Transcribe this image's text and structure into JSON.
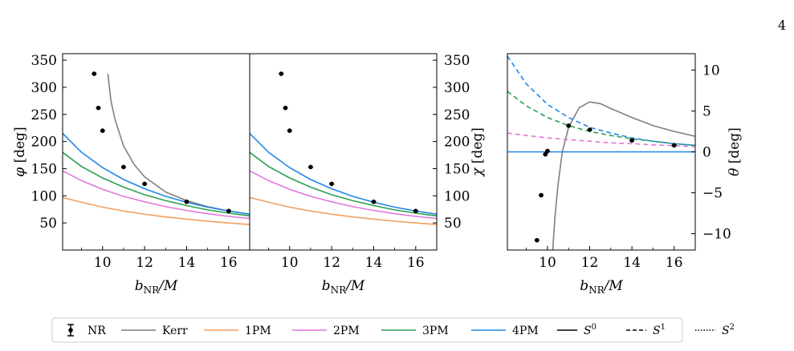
{
  "page_number": "4",
  "legend": {
    "items": [
      {
        "label": "NR",
        "kind": "errorbar",
        "color": "#000000",
        "dash": ""
      },
      {
        "label": "Kerr",
        "kind": "line",
        "color": "#7f7f7f",
        "dash": ""
      },
      {
        "label": "1PM",
        "kind": "line",
        "color": "#f0a060",
        "dash": ""
      },
      {
        "label": "2PM",
        "kind": "line",
        "color": "#e377e0",
        "dash": ""
      },
      {
        "label": "3PM",
        "kind": "line",
        "color": "#2ca050",
        "dash": ""
      },
      {
        "label": "4PM",
        "kind": "line",
        "color": "#1f87e6",
        "dash": ""
      },
      {
        "label": "S",
        "sup": "0",
        "kind": "line",
        "color": "#000000",
        "dash": ""
      },
      {
        "label": "S",
        "sup": "1",
        "kind": "line",
        "color": "#000000",
        "dash": "5,3"
      },
      {
        "label": "S",
        "sup": "2",
        "kind": "line",
        "color": "#000000",
        "dash": "1.5,2"
      }
    ]
  },
  "chart_data": [
    {
      "type": "line",
      "panel": "phi",
      "xlabel": "b_NR/M",
      "ylabel": "φ [deg]",
      "ylabel_side": "left",
      "xlim": [
        8.1,
        17
      ],
      "ylim": [
        0,
        362
      ],
      "xticks": [
        10,
        12,
        14,
        16
      ],
      "yticks": [
        50,
        100,
        150,
        200,
        250,
        300,
        350
      ],
      "scatter": [
        {
          "x": 9.6,
          "y": 325
        },
        {
          "x": 9.8,
          "y": 262
        },
        {
          "x": 10.0,
          "y": 220
        },
        {
          "x": 11.0,
          "y": 153
        },
        {
          "x": 12.0,
          "y": 122
        },
        {
          "x": 14.0,
          "y": 89
        },
        {
          "x": 16.0,
          "y": 72
        }
      ],
      "series": [
        {
          "name": "Kerr",
          "color": "#7f7f7f",
          "dash": "",
          "x": [
            10.25,
            10.4,
            10.6,
            11,
            11.5,
            12,
            13,
            14,
            15,
            16,
            17
          ],
          "y": [
            325,
            275,
            240,
            192,
            158,
            135,
            107,
            91,
            80,
            72,
            66
          ]
        },
        {
          "name": "1PM",
          "color": "#f0a060",
          "dash": "",
          "x": [
            8.1,
            9,
            10,
            11,
            12,
            13,
            14,
            15,
            16,
            17
          ],
          "y": [
            97,
            88,
            79,
            72,
            66,
            61,
            57,
            53,
            50,
            47
          ]
        },
        {
          "name": "2PM",
          "color": "#e377e0",
          "dash": "",
          "x": [
            8.1,
            9,
            10,
            11,
            12,
            13,
            14,
            15,
            16,
            17
          ],
          "y": [
            146,
            128,
            112,
            99,
            89,
            80,
            73,
            67,
            62,
            58
          ]
        },
        {
          "name": "3PM",
          "color": "#2ca050",
          "dash": "",
          "x": [
            8.1,
            9,
            10,
            11,
            12,
            13,
            14,
            15,
            16,
            17
          ],
          "y": [
            180,
            154,
            133,
            116,
            102,
            91,
            82,
            74,
            68,
            63
          ]
        },
        {
          "name": "4PM",
          "color": "#1f87e6",
          "dash": "",
          "x": [
            8.1,
            9,
            10,
            11,
            12,
            13,
            14,
            15,
            16,
            17
          ],
          "y": [
            215,
            180,
            152,
            130,
            113,
            99,
            88,
            79,
            72,
            66
          ]
        }
      ]
    },
    {
      "type": "line",
      "panel": "chi",
      "xlabel": "b_NR/M",
      "ylabel": "χ [deg]",
      "ylabel_side": "right",
      "xlim": [
        8.1,
        17
      ],
      "ylim": [
        0,
        362
      ],
      "xticks": [
        10,
        12,
        14,
        16
      ],
      "yticks": [
        50,
        100,
        150,
        200,
        250,
        300,
        350
      ],
      "scatter": [
        {
          "x": 9.6,
          "y": 325
        },
        {
          "x": 9.8,
          "y": 262
        },
        {
          "x": 10.0,
          "y": 220
        },
        {
          "x": 11.0,
          "y": 153
        },
        {
          "x": 12.0,
          "y": 122
        },
        {
          "x": 14.0,
          "y": 89
        },
        {
          "x": 16.0,
          "y": 72
        }
      ],
      "series": [
        {
          "name": "1PM",
          "color": "#f0a060",
          "dash": "",
          "x": [
            8.1,
            9,
            10,
            11,
            12,
            13,
            14,
            15,
            16,
            17
          ],
          "y": [
            97,
            88,
            79,
            72,
            66,
            61,
            57,
            53,
            50,
            47
          ]
        },
        {
          "name": "2PM",
          "color": "#e377e0",
          "dash": "",
          "x": [
            8.1,
            9,
            10,
            11,
            12,
            13,
            14,
            15,
            16,
            17
          ],
          "y": [
            146,
            128,
            112,
            99,
            89,
            80,
            73,
            67,
            62,
            58
          ]
        },
        {
          "name": "3PM",
          "color": "#2ca050",
          "dash": "",
          "x": [
            8.1,
            9,
            10,
            11,
            12,
            13,
            14,
            15,
            16,
            17
          ],
          "y": [
            180,
            154,
            133,
            116,
            102,
            91,
            82,
            74,
            68,
            63
          ]
        },
        {
          "name": "4PM",
          "color": "#1f87e6",
          "dash": "",
          "x": [
            8.1,
            9,
            10,
            11,
            12,
            13,
            14,
            15,
            16,
            17
          ],
          "y": [
            215,
            180,
            152,
            130,
            113,
            99,
            88,
            79,
            72,
            66
          ]
        }
      ]
    },
    {
      "type": "line",
      "panel": "theta",
      "xlabel": "b_NR/M",
      "ylabel": "θ [deg]",
      "ylabel_side": "right",
      "xlim": [
        8.1,
        17
      ],
      "ylim": [
        -12,
        12
      ],
      "xticks": [
        10,
        12,
        14,
        16
      ],
      "yticks": [
        -10,
        -5,
        0,
        5,
        10
      ],
      "scatter": [
        {
          "x": 9.5,
          "y": -10.8
        },
        {
          "x": 9.7,
          "y": -5.3
        },
        {
          "x": 9.9,
          "y": -0.3
        },
        {
          "x": 10.0,
          "y": 0.1
        },
        {
          "x": 11.0,
          "y": 3.2
        },
        {
          "x": 12.0,
          "y": 2.7
        },
        {
          "x": 14.0,
          "y": 1.4
        },
        {
          "x": 16.0,
          "y": 0.8
        }
      ],
      "series": [
        {
          "name": "Kerr",
          "color": "#7f7f7f",
          "dash": "",
          "x": [
            10.25,
            10.35,
            10.5,
            10.7,
            11,
            11.5,
            12,
            12.5,
            13,
            14,
            15,
            16,
            17
          ],
          "y": [
            -12,
            -8,
            -4,
            0,
            3,
            5.4,
            6.1,
            5.9,
            5.3,
            4.2,
            3.2,
            2.5,
            1.9
          ]
        },
        {
          "name": "2PM S1",
          "color": "#e377e0",
          "dash": "6,4",
          "x": [
            8.1,
            9,
            10,
            11,
            12,
            13,
            14,
            15,
            16,
            17
          ],
          "y": [
            2.3,
            2.0,
            1.7,
            1.5,
            1.3,
            1.1,
            1.0,
            0.85,
            0.75,
            0.65
          ]
        },
        {
          "name": "3PM S1",
          "color": "#2ca050",
          "dash": "6,4",
          "x": [
            8.1,
            9,
            10,
            11,
            12,
            13,
            14,
            15,
            16,
            17
          ],
          "y": [
            7.4,
            5.6,
            4.2,
            3.2,
            2.5,
            2.0,
            1.6,
            1.3,
            1.0,
            0.8
          ]
        },
        {
          "name": "4PM S1",
          "color": "#1f87e6",
          "dash": "6,4",
          "x": [
            8.1,
            9,
            10,
            11,
            12,
            13,
            14,
            15,
            16,
            17
          ],
          "y": [
            11.7,
            8.3,
            5.8,
            4.2,
            3.0,
            2.3,
            1.7,
            1.3,
            1.0,
            0.8
          ]
        },
        {
          "name": "4PM S0",
          "color": "#1f87e6",
          "dash": "",
          "x": [
            8.1,
            17
          ],
          "y": [
            0,
            0
          ]
        }
      ]
    }
  ]
}
